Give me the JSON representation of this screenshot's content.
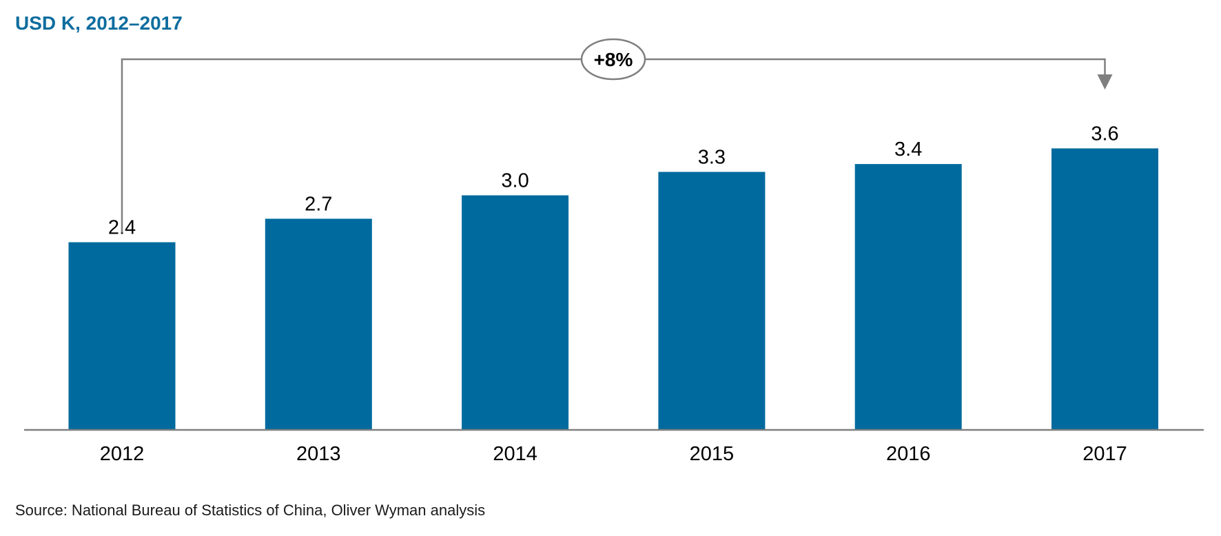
{
  "chart_data": {
    "type": "bar",
    "title": "USD K, 2012–2017",
    "xlabel": "",
    "ylabel": "",
    "categories": [
      "2012",
      "2013",
      "2014",
      "2015",
      "2016",
      "2017"
    ],
    "values": [
      2.4,
      2.7,
      3.0,
      3.3,
      3.4,
      3.6
    ],
    "value_labels": [
      "2.4",
      "2.7",
      "3.0",
      "3.3",
      "3.4",
      "3.6"
    ],
    "ylim": [
      0,
      3.6
    ],
    "grid": false,
    "legend": "none",
    "annotation": {
      "label": "+8%",
      "from": "2012",
      "to": "2017"
    },
    "source": "Source: National Bureau of Statistics of China, Oliver Wyman analysis"
  },
  "colors": {
    "bar": "#006a9e",
    "title": "#0e6d9e",
    "axis": "#808080",
    "annotation": "#7f7f7f"
  }
}
